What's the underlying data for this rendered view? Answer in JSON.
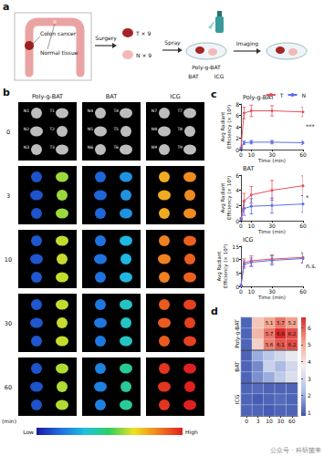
{
  "panels": {
    "a": {
      "label": "a",
      "colon_cancer": "Colon cancer",
      "normal_tissue": "Normal tissue",
      "surgery": "Surgery",
      "tumor": "T × 9",
      "normal": "N × 9",
      "spray": "Spray",
      "probes": [
        "Poly-g-BAT",
        "BAT",
        "ICG"
      ],
      "imaging": "Imaging"
    },
    "b": {
      "label": "b",
      "groups": [
        {
          "name": "Poly-g-BAT",
          "samples": [
            [
              "N1",
              "T1"
            ],
            [
              "N2",
              "T2"
            ],
            [
              "N3",
              "T3"
            ]
          ]
        },
        {
          "name": "BAT",
          "samples": [
            [
              "N4",
              "T4"
            ],
            [
              "N5",
              "T5"
            ],
            [
              "N6",
              "T6"
            ]
          ]
        },
        {
          "name": "ICG",
          "samples": [
            [
              "N7",
              "T7"
            ],
            [
              "N8",
              "T8"
            ],
            [
              "N9",
              "T9"
            ]
          ]
        }
      ],
      "times": [
        0,
        3,
        10,
        30,
        60
      ],
      "time_unit": "(min)",
      "colorbar": {
        "low": "Low",
        "high": "High"
      }
    }
  },
  "chart_data": [
    {
      "type": "line",
      "panel_label": "c",
      "title": "Poly-g-BAT",
      "x_label": "Time (min)",
      "y_label": "Avg Radiant\nEfficiency (× 10⁹)",
      "x": [
        0,
        3,
        10,
        30,
        60
      ],
      "xlim": [
        0,
        60
      ],
      "xticks": [
        0,
        10,
        30,
        60
      ],
      "ylim": [
        0,
        8
      ],
      "yticks": [
        0,
        2,
        4,
        6,
        8
      ],
      "marker": "circle",
      "legend": "top-right",
      "significance": "***",
      "series": [
        {
          "name": "T",
          "color": "#e8505b",
          "values": [
            0.3,
            6.4,
            6.8,
            6.8,
            6.6
          ],
          "errors": [
            0.1,
            1.0,
            1.0,
            0.9,
            0.8
          ]
        },
        {
          "name": "N",
          "color": "#5b6ee8",
          "values": [
            0.2,
            1.2,
            1.3,
            1.3,
            1.2
          ],
          "errors": [
            0.1,
            0.3,
            0.3,
            0.3,
            0.3
          ]
        }
      ]
    },
    {
      "type": "line",
      "title": "BAT",
      "x_label": "Time (min)",
      "y_label": "Avg Radiant\nEfficiency (× 10⁹)",
      "x": [
        0,
        3,
        10,
        30,
        60
      ],
      "xlim": [
        0,
        60
      ],
      "xticks": [
        0,
        10,
        30,
        60
      ],
      "ylim": [
        0,
        6
      ],
      "yticks": [
        0,
        2,
        4,
        6
      ],
      "marker": "circle",
      "significance": "*",
      "series": [
        {
          "name": "T",
          "color": "#e8505b",
          "values": [
            0.3,
            2.6,
            3.4,
            4.0,
            4.6
          ],
          "errors": [
            0.1,
            1.0,
            1.1,
            1.3,
            1.3
          ]
        },
        {
          "name": "N",
          "color": "#5b6ee8",
          "values": [
            0.2,
            1.6,
            1.9,
            2.0,
            2.2
          ],
          "errors": [
            0.1,
            0.9,
            1.0,
            1.0,
            1.1
          ]
        }
      ]
    },
    {
      "type": "line",
      "title": "ICG",
      "x_label": "Time (min)",
      "y_label": "Avg Radiant\nEfficiency (× 10⁹)",
      "x": [
        0,
        3,
        10,
        30,
        60
      ],
      "xlim": [
        0,
        60
      ],
      "xticks": [
        0,
        10,
        30,
        60
      ],
      "ylim": [
        0,
        15
      ],
      "yticks": [
        0,
        5,
        10,
        15
      ],
      "marker": "circle",
      "significance": "n.s.",
      "series": [
        {
          "name": "T",
          "color": "#e8505b",
          "values": [
            0.3,
            8.8,
            9.6,
            10.2,
            10.8
          ],
          "errors": [
            0.1,
            1.5,
            1.8,
            1.6,
            1.8
          ]
        },
        {
          "name": "N",
          "color": "#5b6ee8",
          "values": [
            0.3,
            8.2,
            9.0,
            9.7,
            10.4
          ],
          "errors": [
            0.1,
            1.4,
            1.6,
            1.7,
            1.8
          ]
        }
      ]
    },
    {
      "type": "heatmap",
      "panel_label": "d",
      "x": [
        0,
        3,
        10,
        30,
        60
      ],
      "tick_labels": "x",
      "row_groups": [
        {
          "name": "Poly-g-BAT",
          "rows": [
            [
              1.0,
              4.5,
              5.1,
              5.7,
              5.2
            ],
            [
              1.0,
              4.8,
              5.7,
              6.6,
              6.2
            ],
            [
              1.0,
              4.3,
              5.6,
              6.1,
              6.2
            ]
          ],
          "value_labels": [
            [
              null,
              null,
              "5.1",
              "5.7",
              "5.2"
            ],
            [
              null,
              null,
              "5.7",
              "6.6",
              "6.2"
            ],
            [
              null,
              null,
              "5.6",
              "6.1",
              "6.2"
            ]
          ]
        },
        {
          "name": "BAT",
          "rows": [
            [
              1.0,
              2.0,
              2.5,
              3.0,
              3.5
            ],
            [
              1.0,
              1.5,
              2.8,
              2.2,
              3.0
            ],
            [
              1.0,
              1.6,
              2.0,
              2.6,
              3.2
            ]
          ],
          "value_labels": [
            [
              null,
              null,
              null,
              null,
              null
            ],
            [
              null,
              null,
              null,
              null,
              null
            ],
            [
              null,
              null,
              null,
              null,
              null
            ]
          ]
        },
        {
          "name": "ICG",
          "rows": [
            [
              1.0,
              1.1,
              1.0,
              1.0,
              1.0
            ],
            [
              1.0,
              0.9,
              1.0,
              1.1,
              1.0
            ],
            [
              1.0,
              1.0,
              0.9,
              1.0,
              1.0
            ]
          ],
          "value_labels": [
            [
              null,
              null,
              null,
              null,
              null
            ],
            [
              null,
              null,
              null,
              null,
              null
            ],
            [
              null,
              null,
              null,
              null,
              null
            ]
          ]
        }
      ],
      "colorbar": {
        "range": [
          0.8,
          6.6
        ],
        "ticks": [
          1,
          2,
          3,
          4,
          5,
          6
        ],
        "colors": [
          "#3f55b0",
          "#aebfe6",
          "#f4eef0",
          "#f2a58f",
          "#d92a2a"
        ]
      }
    }
  ],
  "watermark": "公众号 · 科研菌来"
}
